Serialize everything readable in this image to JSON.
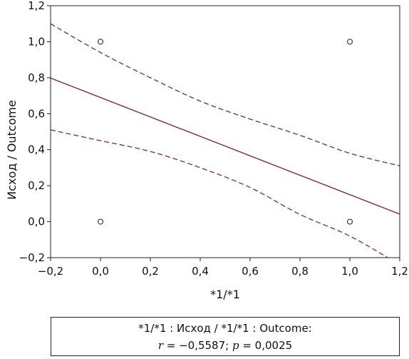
{
  "chart_data": {
    "type": "scatter",
    "xlabel": "*1/*1",
    "ylabel": "Исход / Outcome",
    "xlim": [
      -0.2,
      1.2
    ],
    "ylim": [
      -0.2,
      1.2
    ],
    "xticks": [
      "−0,2",
      "0,0",
      "0,2",
      "0,4",
      "0,6",
      "0,8",
      "1,0",
      "1,2"
    ],
    "yticks": [
      "−0,2",
      "0,0",
      "0,2",
      "0,4",
      "0,6",
      "0,8",
      "1,0",
      "1,2"
    ],
    "tick_values": [
      -0.2,
      0.0,
      0.2,
      0.4,
      0.6,
      0.8,
      1.0,
      1.2
    ],
    "grid": false,
    "points": [
      {
        "x": 0.0,
        "y": 1.0
      },
      {
        "x": 1.0,
        "y": 1.0
      },
      {
        "x": 0.0,
        "y": 0.0
      },
      {
        "x": 1.0,
        "y": 0.0
      }
    ],
    "regression_line": {
      "intercept": 0.69,
      "slope": -0.54
    },
    "confidence_bands": {
      "upper": [
        [
          -0.2,
          1.1
        ],
        [
          0.0,
          0.94
        ],
        [
          0.2,
          0.8
        ],
        [
          0.4,
          0.67
        ],
        [
          0.6,
          0.57
        ],
        [
          0.8,
          0.48
        ],
        [
          1.0,
          0.38
        ],
        [
          1.2,
          0.31
        ]
      ],
      "lower": [
        [
          -0.2,
          0.51
        ],
        [
          0.0,
          0.45
        ],
        [
          0.2,
          0.39
        ],
        [
          0.4,
          0.3
        ],
        [
          0.6,
          0.19
        ],
        [
          0.8,
          0.04
        ],
        [
          1.0,
          -0.08
        ],
        [
          1.2,
          -0.24
        ]
      ]
    },
    "colors": {
      "line": "#7b2946",
      "point": "#2e3a8c",
      "axis": "#222222"
    }
  },
  "caption": {
    "line1": "*1/*1 : Исход / *1/*1 : Outcome:",
    "r_symbol": "r",
    "r_value": " = −0,5587; ",
    "p_symbol": "p",
    "p_value": " = 0,0025"
  }
}
